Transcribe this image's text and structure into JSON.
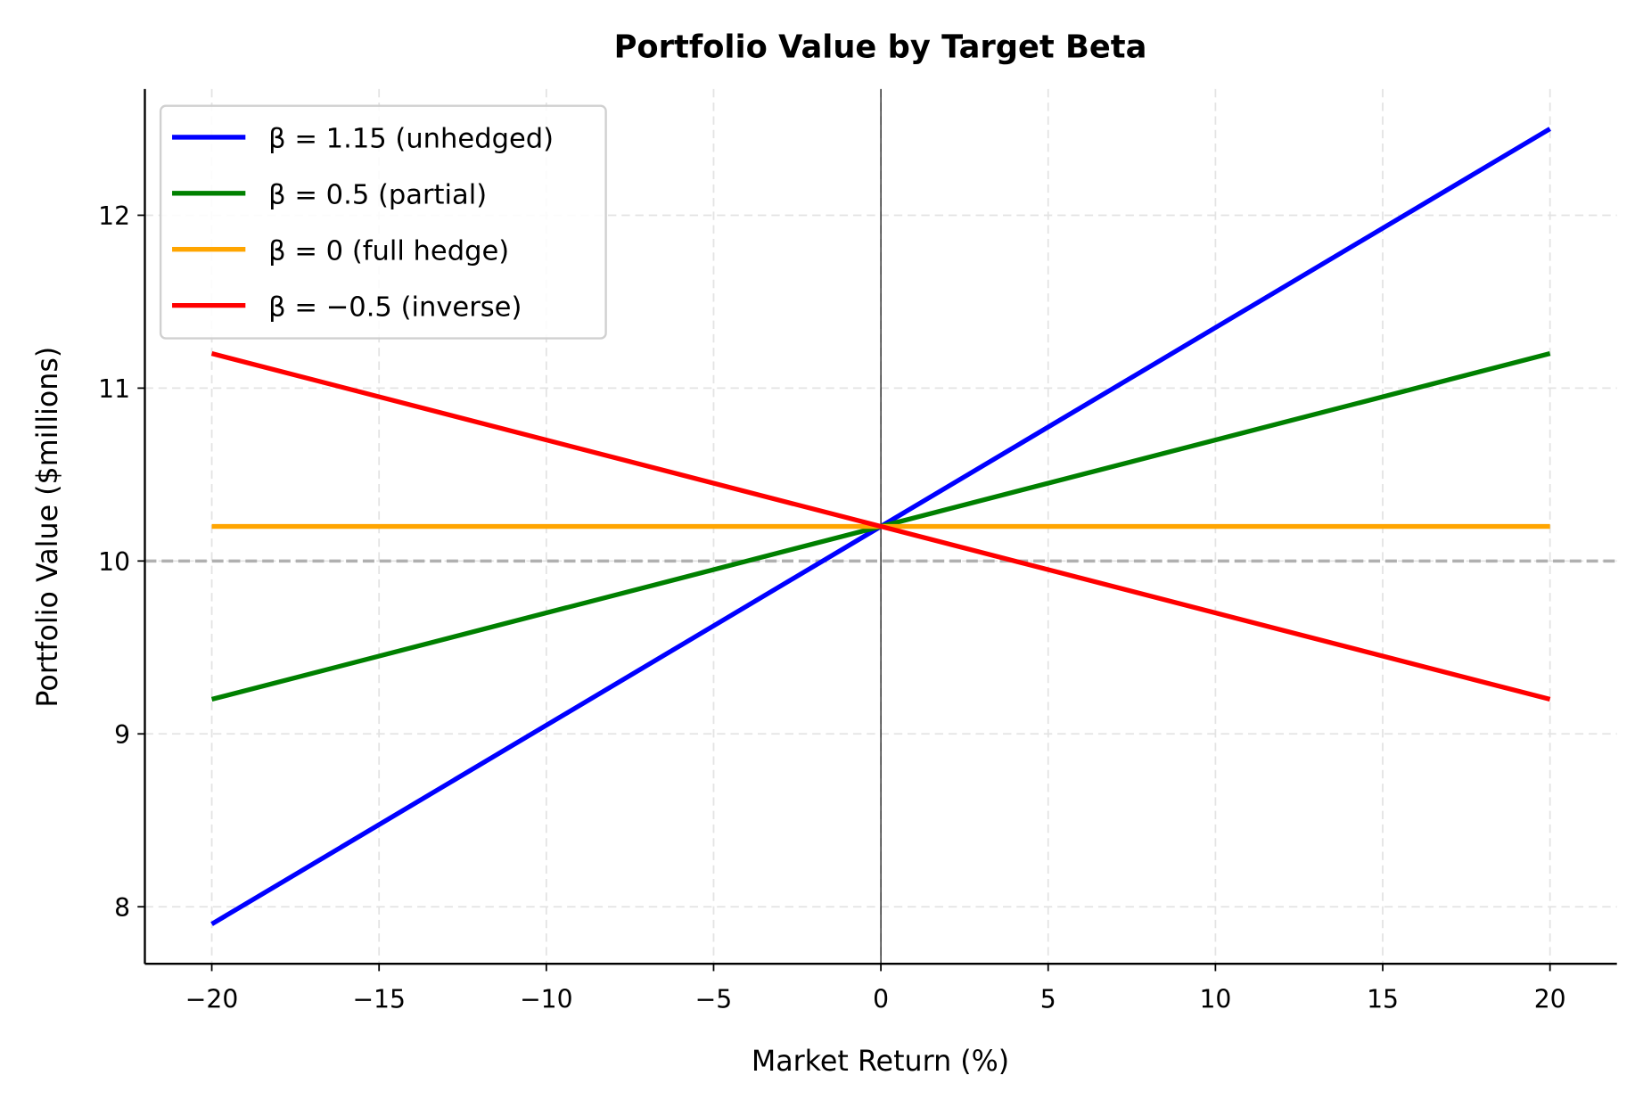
{
  "chart_data": {
    "type": "line",
    "title": "Portfolio Value by Target Beta",
    "xlabel": "Market Return (%)",
    "ylabel": "Portfolio Value ($millions)",
    "xlim": [
      -22,
      22
    ],
    "ylim": [
      7.67,
      12.73
    ],
    "xticks": [
      -20,
      -15,
      -10,
      -5,
      0,
      5,
      10,
      15,
      20
    ],
    "xtick_labels": [
      "−20",
      "−15",
      "−10",
      "−5",
      "0",
      "5",
      "10",
      "15",
      "20"
    ],
    "yticks": [
      8,
      9,
      10,
      11,
      12
    ],
    "ytick_labels": [
      "8",
      "9",
      "10",
      "11",
      "12"
    ],
    "grid": true,
    "legend_position": "upper-left",
    "reference_lines": {
      "horizontal_dashed_y": 10,
      "vertical_x": 0,
      "horizontal_color": "#b0b0b0"
    },
    "series": [
      {
        "name": "β = 1.15 (unhedged)",
        "color": "#0000ff",
        "x": [
          -20,
          20
        ],
        "y": [
          7.9,
          12.5
        ]
      },
      {
        "name": "β = 0.5 (partial)",
        "color": "#008000",
        "x": [
          -20,
          20
        ],
        "y": [
          9.2,
          11.2
        ]
      },
      {
        "name": "β = 0 (full hedge)",
        "color": "#ffa500",
        "x": [
          -20,
          20
        ],
        "y": [
          10.2,
          10.2
        ]
      },
      {
        "name": "β = −0.5 (inverse)",
        "color": "#ff0000",
        "x": [
          -20,
          20
        ],
        "y": [
          11.2,
          9.2
        ]
      }
    ]
  }
}
